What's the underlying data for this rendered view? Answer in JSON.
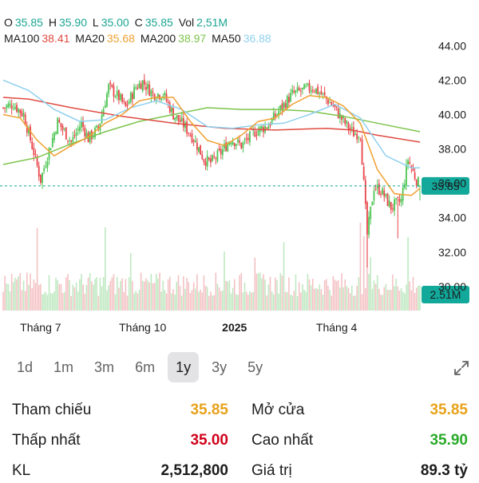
{
  "ohlc": {
    "o_label": "O",
    "o_value": "35.85",
    "h_label": "H",
    "h_value": "35.90",
    "l_label": "L",
    "l_value": "35.00",
    "c_label": "C",
    "c_value": "35.85",
    "vol_label": "Vol",
    "vol_value": "2,51M"
  },
  "ma": {
    "ma100_label": "MA100",
    "ma100_value": "38.41",
    "ma20_label": "MA20",
    "ma20_value": "35.68",
    "ma200_label": "MA200",
    "ma200_value": "38.97",
    "ma50_label": "MA50",
    "ma50_value": "36.88"
  },
  "colors": {
    "up": "#4cc552",
    "down": "#e8454a",
    "ma100": "#e04b40",
    "ma20": "#f0a030",
    "ma200": "#7cc44c",
    "ma50": "#8fd0ef",
    "price_tag": "#12a89a",
    "teal_text": "#1aa592",
    "orange_text": "#e8a21a",
    "red_text": "#d0021b",
    "green_text": "#2aaa2a"
  },
  "chart_data": {
    "type": "candlestick",
    "y_ticks": [
      "44.00",
      "42.00",
      "40.00",
      "38.00",
      "36.00",
      "34.00",
      "32.00",
      "30.00"
    ],
    "ylim": [
      28.6,
      44.9
    ],
    "x_ticks": [
      {
        "label": "Tháng 7",
        "index": 22,
        "bold": false
      },
      {
        "label": "Tháng 10",
        "index": 82,
        "bold": false
      },
      {
        "label": "2025",
        "index": 136,
        "bold": true
      },
      {
        "label": "Tháng 4",
        "index": 196,
        "bold": false
      }
    ],
    "current_price": "35.85",
    "current_price_value": 35.85,
    "current_volume": "2.51M",
    "ma_lines": {
      "ma100": [
        [
          0,
          41.0
        ],
        [
          15,
          40.9
        ],
        [
          40,
          40.4
        ],
        [
          70,
          39.9
        ],
        [
          100,
          39.5
        ],
        [
          130,
          39.2
        ],
        [
          160,
          39.1
        ],
        [
          190,
          39.2
        ],
        [
          205,
          39.1
        ],
        [
          220,
          38.8
        ],
        [
          245,
          38.4
        ]
      ],
      "ma20": [
        [
          0,
          40.0
        ],
        [
          10,
          39.8
        ],
        [
          20,
          38.5
        ],
        [
          30,
          37.6
        ],
        [
          40,
          38.2
        ],
        [
          50,
          38.7
        ],
        [
          60,
          39.5
        ],
        [
          70,
          40.0
        ],
        [
          80,
          40.8
        ],
        [
          90,
          41.0
        ],
        [
          100,
          41.0
        ],
        [
          110,
          39.6
        ],
        [
          120,
          38.5
        ],
        [
          130,
          38.2
        ],
        [
          140,
          38.8
        ],
        [
          150,
          39.6
        ],
        [
          160,
          39.8
        ],
        [
          170,
          40.6
        ],
        [
          180,
          41.1
        ],
        [
          190,
          41.0
        ],
        [
          200,
          40.5
        ],
        [
          210,
          39.5
        ],
        [
          220,
          36.8
        ],
        [
          230,
          35.4
        ],
        [
          240,
          35.3
        ],
        [
          245,
          35.7
        ]
      ],
      "ma200": [
        [
          0,
          37.1
        ],
        [
          20,
          37.5
        ],
        [
          40,
          38.3
        ],
        [
          60,
          39.0
        ],
        [
          80,
          39.6
        ],
        [
          100,
          40.0
        ],
        [
          120,
          40.4
        ],
        [
          140,
          40.3
        ],
        [
          160,
          40.3
        ],
        [
          180,
          40.2
        ],
        [
          200,
          39.9
        ],
        [
          220,
          39.5
        ],
        [
          245,
          39.0
        ]
      ],
      "ma50": [
        [
          0,
          42.0
        ],
        [
          15,
          41.4
        ],
        [
          30,
          40.3
        ],
        [
          45,
          39.6
        ],
        [
          60,
          39.7
        ],
        [
          75,
          40.4
        ],
        [
          90,
          40.8
        ],
        [
          105,
          40.3
        ],
        [
          120,
          39.3
        ],
        [
          135,
          39.2
        ],
        [
          150,
          39.4
        ],
        [
          165,
          39.5
        ],
        [
          180,
          40.0
        ],
        [
          195,
          40.6
        ],
        [
          210,
          39.8
        ],
        [
          225,
          37.6
        ],
        [
          240,
          36.9
        ],
        [
          245,
          36.9
        ]
      ]
    }
  },
  "periods": {
    "items": [
      {
        "label": "1d",
        "active": false
      },
      {
        "label": "1m",
        "active": false
      },
      {
        "label": "3m",
        "active": false
      },
      {
        "label": "6m",
        "active": false
      },
      {
        "label": "1y",
        "active": true
      },
      {
        "label": "3y",
        "active": false
      },
      {
        "label": "5y",
        "active": false
      }
    ],
    "expand_icon": "expand-arrows-icon"
  },
  "stats": {
    "reference_label": "Tham chiếu",
    "reference_value": "35.85",
    "open_label": "Mở cửa",
    "open_value": "35.85",
    "low_label": "Thấp nhất",
    "low_value": "35.00",
    "high_label": "Cao nhất",
    "high_value": "35.90",
    "volume_label": "KL",
    "volume_value": "2,512,800",
    "value_label": "Giá trị",
    "value_value": "89.3 tỷ"
  }
}
